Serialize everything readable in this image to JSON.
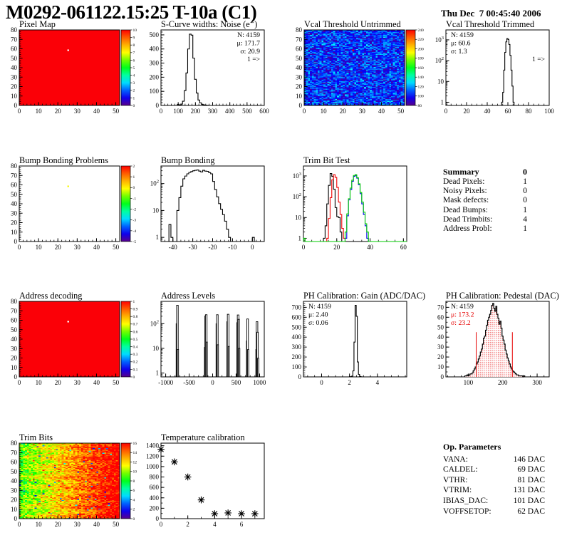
{
  "header": {
    "title": "M0292-061122.15:25 T-10a (C1)",
    "date": "Thu Dec  7 00:45:40 2006"
  },
  "summary": {
    "title": "Summary",
    "value": "0",
    "rows": [
      {
        "label": "Dead Pixels:",
        "value": "1"
      },
      {
        "label": "Noisy Pixels:",
        "value": "0"
      },
      {
        "label": "Mask defects:",
        "value": "0"
      },
      {
        "label": "Dead Bumps:",
        "value": "1"
      },
      {
        "label": "Dead Trimbits:",
        "value": "4"
      },
      {
        "label": "Address Probl:",
        "value": "1"
      }
    ]
  },
  "op_parameters": {
    "title": "Op. Parameters",
    "rows": [
      {
        "label": "VANA:",
        "value": "146 DAC"
      },
      {
        "label": "CALDEL:",
        "value": "69 DAC"
      },
      {
        "label": "VTHR:",
        "value": "81 DAC"
      },
      {
        "label": "VTRIM:",
        "value": "131 DAC"
      },
      {
        "label": "IBIAS_DAC:",
        "value": "101 DAC"
      },
      {
        "label": "VOFFSETOP:",
        "value": "62 DAC"
      }
    ]
  },
  "chart_data": [
    {
      "id": "pixel_map",
      "type": "heatmap",
      "title": "Pixel Map",
      "x": {
        "min": 0,
        "max": 52,
        "ticks": [
          0,
          10,
          20,
          30,
          40,
          50
        ],
        "minor": 5
      },
      "y": {
        "min": 0,
        "max": 80,
        "ticks": [
          0,
          10,
          20,
          30,
          40,
          50,
          60,
          70,
          80
        ],
        "minor": 5
      },
      "base_color": "#fb0007",
      "defect": {
        "col": 25,
        "row": 58,
        "color": "#ffffff"
      },
      "colorbar": {
        "min": 0,
        "max": 10,
        "ticks": [
          0,
          1,
          2,
          3,
          4,
          5,
          6,
          7,
          8,
          9,
          10
        ]
      }
    },
    {
      "id": "scurve_noise",
      "type": "hist",
      "title": "S-Curve widths: Noise (e⁻)",
      "x": {
        "min": 0,
        "max": 600,
        "ticks": [
          0,
          100,
          200,
          300,
          400,
          500,
          600
        ],
        "minor": 5
      },
      "y": {
        "scale": "lin",
        "min": 0,
        "max": 535,
        "ticks": [
          0,
          100,
          200,
          300,
          400,
          500
        ],
        "minor": 5
      },
      "series": [
        {
          "color": "#000000",
          "bins": {
            "start": 95,
            "width": 10,
            "counts": [
              8,
              3,
              10,
              30,
              105,
              230,
              400,
              505,
              498,
              335,
              185,
              88,
              38,
              18,
              8,
              4,
              2,
              1
            ]
          }
        }
      ],
      "stats": {
        "pos": "right",
        "lines": [
          {
            "t": "N: 4159",
            "c": "#000000"
          },
          {
            "t": "μ: 171.7",
            "c": "#000000"
          },
          {
            "t": "σ: 20.9",
            "c": "#000000"
          }
        ]
      },
      "overflow": "1 =>"
    },
    {
      "id": "vcal_untrimmed",
      "type": "heatmap",
      "title": "Vcal Threshold Untrimmed",
      "x": {
        "min": 0,
        "max": 52,
        "ticks": [
          0,
          10,
          20,
          30,
          40,
          50
        ],
        "minor": 5
      },
      "y": {
        "min": 0,
        "max": 80,
        "ticks": [
          0,
          10,
          20,
          30,
          40,
          50,
          60,
          70,
          80
        ],
        "minor": 5
      },
      "noise": {
        "seed": 42,
        "base": 90,
        "spread": 34,
        "xgrad": 0,
        "row_wave": 3,
        "hot_p": 0.03,
        "hot_base": 118,
        "hot_spread": 18,
        "cold_p": 0.15,
        "cold_base": 83,
        "cold_spread": 7
      },
      "defect": {
        "col": 25,
        "row": 58,
        "color": "#ff0000"
      },
      "colorbar": {
        "min": 80,
        "max": 240,
        "ticks": [
          80,
          100,
          120,
          140,
          160,
          180,
          200,
          220,
          240
        ]
      }
    },
    {
      "id": "vcal_trimmed",
      "type": "hist",
      "title": "Vcal Threshold Trimmed",
      "x": {
        "min": 0,
        "max": 100,
        "ticks": [
          0,
          20,
          40,
          60,
          80,
          100
        ],
        "minor": 4
      },
      "y": {
        "scale": "log",
        "min": 0.7,
        "max": 3000
      },
      "series": [
        {
          "color": "#000000",
          "bins": {
            "start": 54,
            "width": 1,
            "counts": [
              1,
              3,
              35,
              250,
              800,
              1150,
              1050,
              600,
              180,
              35,
              6,
              1
            ]
          }
        }
      ],
      "stats": {
        "pos": "left",
        "lines": [
          {
            "t": "N: 4159",
            "c": "#000000"
          },
          {
            "t": "μ: 60.6",
            "c": "#000000"
          },
          {
            "t": "σ:  1.3",
            "c": "#000000"
          }
        ]
      },
      "overflow": "1 =>"
    },
    {
      "id": "bump_problems",
      "type": "heatmap",
      "title": "Bump Bonding Problems",
      "x": {
        "min": 0,
        "max": 52,
        "ticks": [
          0,
          10,
          20,
          30,
          40,
          50
        ],
        "minor": 5
      },
      "y": {
        "min": 0,
        "max": 80,
        "ticks": [
          0,
          10,
          20,
          30,
          40,
          50,
          60,
          70,
          80
        ],
        "minor": 5
      },
      "defect": {
        "col": 25,
        "row": 58,
        "color": "#f6f806"
      },
      "colorbar": {
        "min": -5,
        "max": 2,
        "ticks": [
          -5,
          -4,
          -3,
          -2,
          -1,
          0,
          1,
          2
        ]
      }
    },
    {
      "id": "bump_bonding",
      "type": "hist",
      "title": "Bump Bonding",
      "x": {
        "min": -46,
        "max": 6,
        "ticks": [
          -40,
          -30,
          -20,
          -10,
          0
        ],
        "minor": 5
      },
      "y": {
        "scale": "log",
        "min": 0.7,
        "max": 450
      },
      "series": [
        {
          "color": "#000000",
          "bins": {
            "start": -42,
            "width": 1,
            "counts": [
              3,
              1,
              0,
              0,
              10,
              30,
              80,
              150,
              190,
              230,
              260,
              280,
              300,
              310,
              320,
              290,
              270,
              310,
              290,
              285,
              255,
              230,
              120,
              60,
              32,
              18,
              11,
              7,
              4,
              2,
              1,
              0,
              0,
              0,
              0,
              0,
              0,
              0,
              0,
              0,
              0,
              0,
              1
            ]
          }
        }
      ]
    },
    {
      "id": "trim_bit_test",
      "type": "hist",
      "title": "Trim Bit Test",
      "x": {
        "min": 0,
        "max": 62,
        "ticks": [
          0,
          20,
          40,
          60
        ],
        "minor": 4
      },
      "y": {
        "scale": "log",
        "min": 0.7,
        "max": 3000
      },
      "series": [
        {
          "color": "#000000",
          "bins": {
            "start": 12,
            "width": 1,
            "counts": [
              1,
              4,
              45,
              350,
              1300,
              950,
              230,
              30,
              11,
              10,
              2
            ]
          }
        },
        {
          "color": "#f00000",
          "bins": {
            "start": 14,
            "width": 1,
            "counts": [
              1,
              9,
              90,
              650,
              1150,
              850,
              280,
              55,
              14,
              3,
              1
            ]
          }
        },
        {
          "color": "#0000f0",
          "bins": {
            "start": 25,
            "width": 1,
            "counts": [
              1,
              12,
              70,
              220,
              550,
              950,
              1050,
              780,
              380,
              140,
              45,
              14,
              4,
              1
            ]
          }
        },
        {
          "color": "#00cc00",
          "bins": {
            "start": 0,
            "width": 1,
            "counts": [
              1,
              0,
              0,
              0,
              0,
              0,
              0,
              0,
              0,
              0,
              0,
              0,
              0,
              0,
              0,
              0,
              0,
              0,
              0,
              0,
              0,
              0,
              0,
              0,
              0,
              2,
              15,
              80,
              260,
              620,
              1050,
              1150,
              820,
              420,
              160,
              55,
              18,
              5,
              2,
              0,
              0,
              0,
              0,
              0,
              0,
              0,
              0,
              0,
              0,
              0,
              0,
              0,
              0,
              0,
              0,
              0,
              0,
              0,
              0,
              0,
              0,
              0
            ]
          }
        }
      ]
    },
    {
      "id": "address_decoding",
      "type": "heatmap",
      "title": "Address decoding",
      "x": {
        "min": 0,
        "max": 52,
        "ticks": [
          0,
          10,
          20,
          30,
          40,
          50
        ],
        "minor": 5
      },
      "y": {
        "min": 0,
        "max": 80,
        "ticks": [
          0,
          10,
          20,
          30,
          40,
          50,
          60,
          70,
          80
        ],
        "minor": 5
      },
      "base_color": "#fb0007",
      "defect": {
        "col": 25,
        "row": 58,
        "color": "#ffffff"
      },
      "colorbar": {
        "min": 0,
        "max": 1,
        "ticks": [
          0,
          0.1,
          0.2,
          0.3,
          0.4,
          0.5,
          0.6,
          0.7,
          0.8,
          0.9,
          1
        ]
      }
    },
    {
      "id": "address_levels",
      "type": "hist",
      "title": "Address Levels",
      "x": {
        "min": -1100,
        "max": 1100,
        "ticks": [
          -1000,
          -500,
          0,
          500,
          1000
        ],
        "minor": 5
      },
      "y": {
        "scale": "log",
        "min": 0.7,
        "max": 800
      },
      "bars": [
        [
          -762,
          100,
          30
        ],
        [
          -750,
          555,
          35
        ],
        [
          -738,
          9,
          25
        ],
        [
          -162,
          11,
          25
        ],
        [
          -148,
          205,
          35
        ],
        [
          -136,
          230,
          35
        ],
        [
          -124,
          18,
          25
        ],
        [
          88,
          100,
          30
        ],
        [
          100,
          230,
          35
        ],
        [
          112,
          14,
          25
        ],
        [
          318,
          120,
          30
        ],
        [
          331,
          240,
          35
        ],
        [
          344,
          12,
          25
        ],
        [
          530,
          110,
          30
        ],
        [
          543,
          225,
          35
        ],
        [
          556,
          150,
          30
        ],
        [
          568,
          10,
          25
        ],
        [
          733,
          20,
          25
        ],
        [
          745,
          155,
          35
        ],
        [
          757,
          9,
          25
        ],
        [
          933,
          9,
          25
        ],
        [
          945,
          120,
          35
        ],
        [
          958,
          45,
          30
        ],
        [
          970,
          4,
          25
        ]
      ]
    },
    {
      "id": "ph_gain",
      "type": "hist",
      "title": "PH Calibration: Gain (ADC/DAC)",
      "x": {
        "min": -1.3,
        "max": 6.1,
        "ticks": [
          0,
          2,
          4
        ],
        "minor": 4
      },
      "y": {
        "scale": "lin",
        "min": 0,
        "max": 760,
        "ticks": [
          0,
          100,
          200,
          300,
          400,
          500,
          600,
          700
        ],
        "minor": 5
      },
      "series": [
        {
          "color": "#000000",
          "bins": {
            "start": 2.0,
            "width": 0.08,
            "counts": [
              1,
              2,
              8,
              60,
              350,
              720,
              610,
              150,
              25,
              5,
              1
            ]
          }
        }
      ],
      "stats": {
        "pos": "left",
        "lines": [
          {
            "t": "N: 4159",
            "c": "#000000"
          },
          {
            "t": "μ: 2.40",
            "c": "#000000"
          },
          {
            "t": "σ: 0.06",
            "c": "#000000"
          }
        ]
      }
    },
    {
      "id": "ph_pedestal",
      "type": "hist",
      "title": "PH Calibration: Pedestal (DAC)",
      "x": {
        "min": 35,
        "max": 335,
        "ticks": [
          100,
          200,
          300
        ],
        "minor": 5
      },
      "y": {
        "scale": "lin",
        "min": 0,
        "max": 76,
        "ticks": [
          0,
          10,
          20,
          30,
          40,
          50,
          60,
          70
        ],
        "minor": 2
      },
      "series": [
        {
          "color": "#000000",
          "width": 1.2,
          "fill": "dots",
          "bins": {
            "start": 90,
            "width": 3,
            "counts": [
              1,
              1,
              2,
              1,
              2,
              3,
              3,
              4,
              6,
              8,
              10,
              13,
              15,
              18,
              21,
              25,
              28,
              33,
              39,
              41,
              47,
              52,
              57,
              60,
              63,
              67,
              72,
              74,
              69,
              66,
              71,
              63,
              59,
              53,
              56,
              49,
              41,
              37,
              33,
              27,
              23,
              19,
              16,
              13,
              10,
              8,
              6,
              5,
              4,
              3,
              2,
              2,
              1,
              1,
              1,
              1,
              0,
              1
            ]
          }
        }
      ],
      "vlines": [
        {
          "x": 123,
          "h": 45,
          "color": "#e60000"
        },
        {
          "x": 228,
          "h": 45,
          "color": "#e60000"
        }
      ],
      "stats": {
        "pos": "left",
        "lines": [
          {
            "t": "N: 4159",
            "c": "#000000"
          },
          {
            "t": "μ: 173.2",
            "c": "#e60000"
          },
          {
            "t": "σ: 23.2",
            "c": "#e60000"
          }
        ]
      }
    },
    {
      "id": "trim_bits",
      "type": "heatmap",
      "title": "Trim Bits",
      "x": {
        "min": 0,
        "max": 52,
        "ticks": [
          0,
          10,
          20,
          30,
          40,
          50
        ],
        "minor": 5
      },
      "y": {
        "min": 0,
        "max": 80,
        "ticks": [
          0,
          10,
          20,
          30,
          40,
          50,
          60,
          70,
          80
        ],
        "minor": 5
      },
      "noise": {
        "seed": 7,
        "base": 7,
        "spread": 4,
        "xgrad": 2,
        "row_wave": 0.6,
        "hot_p": 0.05,
        "hot_xbias": true,
        "hot_base": 13.5,
        "hot_spread": 2.5,
        "cold_p": 0.012,
        "cold_base": 1.5,
        "cold_spread": 4
      },
      "colorbar": {
        "min": 0,
        "max": 16,
        "ticks": [
          0,
          2,
          4,
          6,
          8,
          10,
          12,
          14,
          16
        ]
      }
    },
    {
      "id": "temp_calibration",
      "type": "scatter",
      "title": "Temperature calibration",
      "x": {
        "min": 0,
        "max": 7.7,
        "ticks": [
          0,
          2,
          4,
          6
        ],
        "minor": 2
      },
      "y": {
        "scale": "lin",
        "min": 0,
        "max": 1450,
        "ticks": [
          0,
          200,
          400,
          600,
          800,
          1000,
          1200,
          1400
        ],
        "minor": 2
      },
      "points": [
        [
          0,
          1330
        ],
        [
          1,
          1090
        ],
        [
          2,
          800
        ],
        [
          3,
          360
        ],
        [
          4,
          95
        ],
        [
          5,
          110
        ],
        [
          6,
          95
        ],
        [
          7,
          95
        ]
      ]
    }
  ]
}
